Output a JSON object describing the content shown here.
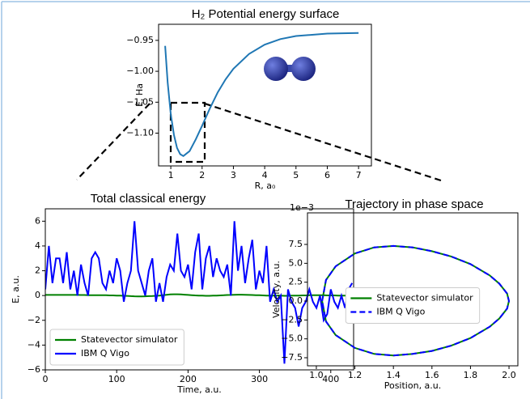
{
  "chart_data": [
    {
      "type": "line",
      "title": "H₂ Potential energy surface",
      "xlabel": "R, a₀",
      "ylabel": "E, Ha",
      "color": "#1f77b4",
      "x": [
        0.82,
        0.9,
        1.0,
        1.1,
        1.2,
        1.3,
        1.4,
        1.6,
        1.8,
        2.0,
        2.25,
        2.5,
        2.75,
        3.0,
        3.5,
        4,
        4.5,
        5,
        6,
        7
      ],
      "values": [
        -0.959,
        -1.018,
        -1.07,
        -1.103,
        -1.124,
        -1.134,
        -1.137,
        -1.129,
        -1.11,
        -1.088,
        -1.06,
        -1.034,
        -1.013,
        -0.996,
        -0.972,
        -0.957,
        -0.948,
        -0.943,
        -0.939,
        -0.938
      ],
      "xlim": [
        0.61,
        7.41
      ],
      "ylim": [
        -1.153,
        -0.924
      ],
      "xticks": [
        1,
        2,
        3,
        4,
        5,
        6,
        7
      ],
      "yticks": [
        {
          "value": -0.95,
          "label": "−0.95"
        },
        {
          "value": -1.0,
          "label": "−1.00"
        },
        {
          "value": -1.05,
          "label": "−1.05"
        },
        {
          "value": -1.1,
          "label": "−1.10"
        }
      ]
    },
    {
      "type": "line",
      "title": "Total classical energy",
      "xlabel": "Time, a.u.",
      "ylabel": "E, a.u.",
      "legend": "lower left",
      "x": [
        0,
        5,
        10,
        15,
        20,
        25,
        30,
        35,
        40,
        45,
        50,
        55,
        60,
        65,
        70,
        75,
        80,
        85,
        90,
        95,
        100,
        105,
        110,
        115,
        120,
        125,
        130,
        135,
        140,
        145,
        150,
        155,
        160,
        165,
        170,
        175,
        180,
        185,
        190,
        195,
        200,
        205,
        210,
        215,
        220,
        225,
        230,
        235,
        240,
        245,
        250,
        255,
        260,
        265,
        270,
        275,
        280,
        285,
        290,
        295,
        300,
        305,
        310,
        315,
        320,
        325,
        330,
        335,
        340,
        345,
        350,
        355,
        360,
        365,
        370,
        375,
        380,
        385,
        390,
        395,
        400,
        405,
        410,
        415,
        420,
        425,
        430
      ],
      "series": [
        {
          "name": "Statevector simulator",
          "color": "#008000",
          "values": [
            0.05,
            0.05,
            0.05,
            0.05,
            0.05,
            0.05,
            0.05,
            0.05,
            0.05,
            0.05,
            0.04,
            0.04,
            0.03,
            0.03,
            0.03,
            0.02,
            0.02,
            0.02,
            0.01,
            0.01,
            0,
            0,
            -0.02,
            -0.03,
            -0.05,
            -0.06,
            -0.07,
            -0.07,
            -0.06,
            -0.05,
            -0.04,
            -0.02,
            0,
            0.03,
            0.06,
            0.09,
            0.1,
            0.1,
            0.09,
            0.07,
            0.05,
            0.03,
            0.01,
            0,
            -0.01,
            -0.02,
            -0.02,
            -0.01,
            0,
            0.01,
            0.02,
            0.04,
            0.05,
            0.06,
            0.07,
            0.07,
            0.06,
            0.05,
            0.04,
            0.03,
            0.02,
            0.01,
            0,
            0,
            0,
            -0.01,
            -0.01,
            -0.02,
            -0.02,
            -0.01,
            0,
            0,
            0.01,
            0.01,
            0.02,
            0.02,
            0.02,
            0.02,
            0.02,
            0.01,
            0.01,
            0.01,
            0,
            0,
            0,
            0,
            0
          ]
        },
        {
          "name": "IBM Q Vigo",
          "color": "#0000ff",
          "values": [
            0.5,
            4,
            1,
            3,
            3,
            1,
            3.5,
            0.5,
            2,
            0,
            2.5,
            1,
            0,
            3,
            3.5,
            3,
            1,
            0.5,
            2,
            1,
            3,
            2,
            -0.5,
            1,
            2,
            6,
            2,
            1,
            0,
            2,
            3,
            -0.5,
            1,
            -0.5,
            1.5,
            2.5,
            2,
            5,
            2,
            1.5,
            2.5,
            0.5,
            3.5,
            5,
            0.5,
            3,
            4,
            1.5,
            3,
            2,
            1.5,
            2.5,
            0,
            6,
            2,
            4,
            1,
            3,
            4.5,
            0.5,
            2,
            1,
            4,
            -0.5,
            0.5,
            -0.5,
            0,
            -5.5,
            0.5,
            -0.5,
            -1,
            -2.5,
            -1,
            -0.5,
            0.5,
            -0.5,
            -1,
            0,
            -2,
            -1.5,
            0.5,
            -0.5,
            -1,
            0,
            -1,
            0.5,
            1
          ]
        }
      ],
      "xlim": [
        0,
        432
      ],
      "ylim": [
        -6,
        7
      ],
      "xticks": [
        0,
        100,
        200,
        300,
        400
      ],
      "yticks": [
        {
          "value": -6,
          "label": "−6"
        },
        {
          "value": -4,
          "label": "−4"
        },
        {
          "value": -2,
          "label": "−2"
        },
        0,
        2,
        4,
        6
      ]
    },
    {
      "type": "line",
      "title": "Trajectory in phase space",
      "xlabel": "Position, a.u.",
      "ylabel": "Velocity, a.u.",
      "y_offset_label": "1e−3",
      "legend": "center",
      "x": [
        1.03,
        1.05,
        1.1,
        1.2,
        1.3,
        1.4,
        1.5,
        1.6,
        1.7,
        1.8,
        1.9,
        1.95,
        1.99,
        2.0,
        1.99,
        1.95,
        1.9,
        1.8,
        1.7,
        1.6,
        1.5,
        1.4,
        1.3,
        1.2,
        1.1,
        1.05,
        1.03
      ],
      "series": [
        {
          "name": "Statevector simulator",
          "color": "#008000",
          "linestyle": "solid",
          "values": [
            0,
            2.8,
            4.6,
            6.3,
            7.1,
            7.3,
            7.1,
            6.6,
            5.9,
            4.9,
            3.4,
            2.3,
            1.0,
            0,
            -1.0,
            -2.3,
            -3.4,
            -4.9,
            -5.9,
            -6.6,
            -7.0,
            -7.2,
            -7.0,
            -6.2,
            -4.5,
            -2.7,
            0
          ]
        },
        {
          "name": "IBM Q Vigo",
          "color": "#0000ff",
          "linestyle": "dashed",
          "values": [
            0,
            2.8,
            4.6,
            6.3,
            7.1,
            7.3,
            7.1,
            6.6,
            5.9,
            4.9,
            3.4,
            2.3,
            1.0,
            0,
            -1.0,
            -2.3,
            -3.4,
            -4.9,
            -5.9,
            -6.6,
            -7.0,
            -7.2,
            -7.0,
            -6.2,
            -4.5,
            -2.7,
            0
          ]
        }
      ],
      "xlim": [
        0.954,
        2.046
      ],
      "ylim": [
        -8.57,
        11.68
      ],
      "xticks": [
        {
          "value": 1.0,
          "label": "1.0"
        },
        1.2,
        1.4,
        1.6,
        1.8,
        {
          "value": 2.0,
          "label": "2.0"
        }
      ],
      "yticks": [
        {
          "value": -7.5,
          "label": "−7.5"
        },
        {
          "value": -5.0,
          "label": "−5.0"
        },
        {
          "value": -2.5,
          "label": "−2.5"
        },
        {
          "value": 0.0,
          "label": "0.0"
        },
        2.5,
        {
          "value": 5.0,
          "label": "5.0"
        },
        7.5
      ]
    }
  ]
}
